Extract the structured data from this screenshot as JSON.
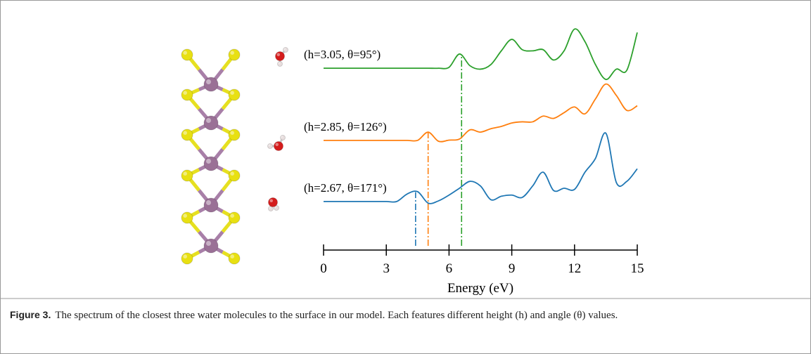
{
  "chart_data": {
    "type": "line",
    "x": [
      0,
      0.5,
      1,
      1.5,
      2,
      2.5,
      3,
      3.5,
      4,
      4.5,
      5,
      5.5,
      6,
      6.5,
      7,
      7.5,
      8,
      8.5,
      9,
      9.5,
      10,
      10.5,
      11,
      11.5,
      12,
      12.5,
      13,
      13.5,
      14,
      14.5,
      15
    ],
    "xlabel": "Energy (eV)",
    "xlim": [
      0,
      15
    ],
    "xticks": [
      0,
      3,
      6,
      9,
      12,
      15
    ],
    "ylim": [
      0,
      10
    ],
    "series": [
      {
        "label": "(h=3.05, θ=95°)",
        "color": "#2ca02c",
        "peak": 6.6,
        "values": [
          7.94,
          7.94,
          7.94,
          7.94,
          7.94,
          7.94,
          7.94,
          7.94,
          7.94,
          7.94,
          7.94,
          7.94,
          7.98,
          8.56,
          8.05,
          7.9,
          8.1,
          8.7,
          9.2,
          8.75,
          8.7,
          8.75,
          8.3,
          8.7,
          9.65,
          9.1,
          8.1,
          7.45,
          7.9,
          7.85,
          9.5
        ]
      },
      {
        "label": "(h=2.85, θ=126°)",
        "color": "#ff7f0e",
        "peak": 5.0,
        "values": [
          4.79,
          4.79,
          4.79,
          4.79,
          4.79,
          4.79,
          4.79,
          4.79,
          4.79,
          4.79,
          5.15,
          4.75,
          4.8,
          4.85,
          5.25,
          5.15,
          5.3,
          5.4,
          5.55,
          5.6,
          5.6,
          5.85,
          5.75,
          6.0,
          6.25,
          5.95,
          6.6,
          7.25,
          6.75,
          6.1,
          6.3
        ]
      },
      {
        "label": "(h=2.67, θ=171°)",
        "color": "#1f77b4",
        "peak": 4.4,
        "values": [
          2.12,
          2.12,
          2.12,
          2.12,
          2.12,
          2.12,
          2.12,
          2.12,
          2.45,
          2.55,
          2.05,
          2.15,
          2.4,
          2.7,
          3.0,
          2.8,
          2.2,
          2.35,
          2.4,
          2.3,
          2.8,
          3.4,
          2.6,
          2.7,
          2.65,
          3.4,
          4.0,
          5.1,
          2.95,
          3.0,
          3.55
        ]
      }
    ]
  },
  "caption": {
    "label": "Figure 3.",
    "text": "The spectrum of the closest three water molecules to the surface in our model. Each features different height (h) and angle (θ) values."
  }
}
